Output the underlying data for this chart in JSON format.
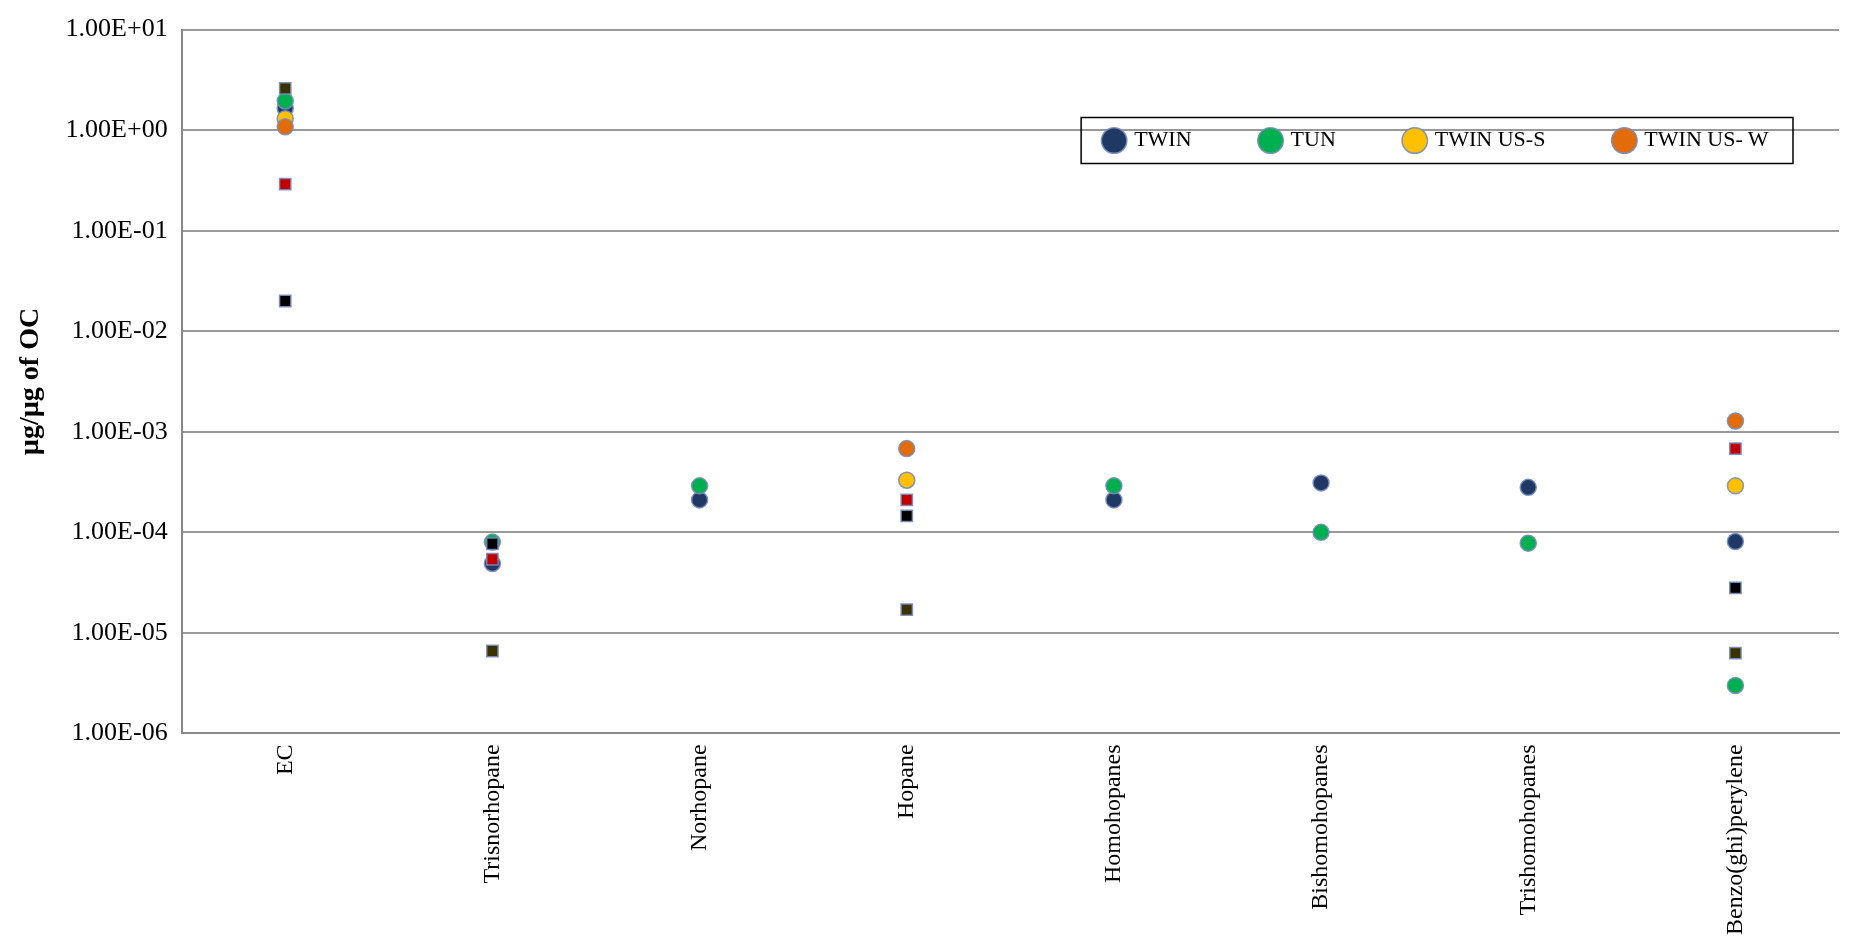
{
  "chart_data": {
    "type": "scatter",
    "ylabel": "µg/µg of OC",
    "categories": [
      "EC",
      "Trisnorhopane",
      "Norhopane",
      "Hopane",
      "Homohopanes",
      "Bishomohopanes",
      "Trishomohopanes",
      "Benzo(ghi)perylene"
    ],
    "log": "y",
    "ylim": [
      1e-06,
      10
    ],
    "yticks": [
      {
        "value": 1e-06,
        "label": "1.00E-06"
      },
      {
        "value": 1e-05,
        "label": "1.00E-05"
      },
      {
        "value": 0.0001,
        "label": "1.00E-04"
      },
      {
        "value": 0.001,
        "label": "1.00E-03"
      },
      {
        "value": 0.01,
        "label": "1.00E-02"
      },
      {
        "value": 0.1,
        "label": "1.00E-01"
      },
      {
        "value": 1,
        "label": "1.00E+00"
      },
      {
        "value": 10,
        "label": "1.00E+01"
      }
    ],
    "grid": "y",
    "legend": "top right",
    "series": [
      {
        "name": "TWIN",
        "color": "#1f3864",
        "marker": "circle",
        "values": [
          1.65,
          4.9e-05,
          0.00021,
          null,
          0.00021,
          0.00031,
          0.00028,
          8.1e-05
        ]
      },
      {
        "name": "TUN",
        "color": "#00b050",
        "marker": "circle",
        "values": [
          1.95,
          8e-05,
          0.00029,
          null,
          0.00029,
          0.0001,
          7.8e-05,
          3e-06
        ]
      },
      {
        "name": "TWIN US-S",
        "color": "#ffc000",
        "marker": "circle",
        "values": [
          1.3,
          null,
          null,
          0.00033,
          null,
          null,
          null,
          0.00029
        ]
      },
      {
        "name": "TWIN US- W",
        "color": "#e36c0a",
        "marker": "circle",
        "values": [
          1.08,
          null,
          null,
          0.00068,
          null,
          null,
          null,
          0.00128
        ]
      },
      {
        "color": "#c00000",
        "marker": "square",
        "values": [
          0.29,
          5.4e-05,
          null,
          0.00021,
          null,
          null,
          null,
          0.00068
        ]
      },
      {
        "color": "#000000",
        "marker": "square",
        "values": [
          0.02,
          7.7e-05,
          null,
          0.000146,
          null,
          null,
          null,
          2.8e-05
        ]
      },
      {
        "color": "#3a3300",
        "marker": "square",
        "values": [
          2.6,
          6.6e-06,
          null,
          1.7e-05,
          null,
          null,
          null,
          6.3e-06
        ]
      }
    ]
  }
}
